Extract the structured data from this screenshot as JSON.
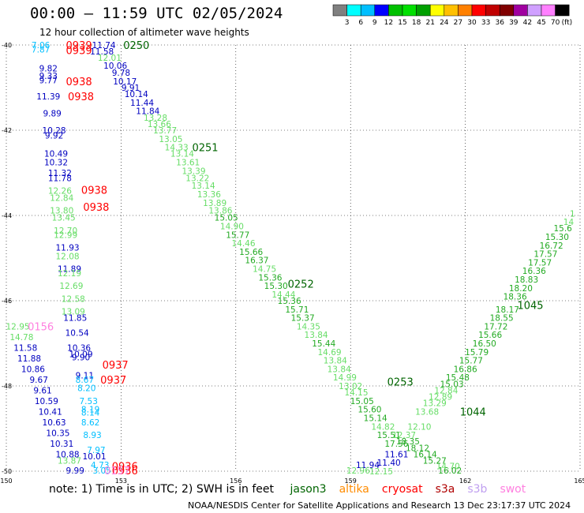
{
  "header": {
    "title": "00:00 – 11:59 UTC 02/05/2024",
    "subtitle": "12 hour collection of altimeter wave heights"
  },
  "legend": {
    "labels": [
      "3",
      "6",
      "9",
      "12",
      "15",
      "18",
      "21",
      "24",
      "27",
      "30",
      "33",
      "36",
      "39",
      "42",
      "45",
      "70"
    ],
    "unit": "(ft)",
    "colors": [
      "#808080",
      "#00ffff",
      "#00bfff",
      "#0000ff",
      "#00c000",
      "#00e000",
      "#00a000",
      "#ffff00",
      "#ffc000",
      "#ff8000",
      "#ff0000",
      "#c00000",
      "#800000",
      "#a000a0",
      "#d0a0ff",
      "#ff80ff",
      "#000000"
    ]
  },
  "note": {
    "prefix": "note:  1) Time is in UTC; 2) SWH is in feet",
    "satellites": [
      {
        "name": "jason3",
        "color": "#006400"
      },
      {
        "name": "altika",
        "color": "#ff8c00"
      },
      {
        "name": "cryosat",
        "color": "#ff0000"
      },
      {
        "name": "s3a",
        "color": "#b00000"
      },
      {
        "name": "s3b",
        "color": "#c0a0f0"
      },
      {
        "name": "swot",
        "color": "#ff80e0"
      }
    ]
  },
  "credit": "NOAA/NESDIS Center for Satellite Applications and Research    13 Dec 23:17:37 UTC 2024",
  "chart_data": {
    "type": "scatter",
    "xlim": [
      150,
      165
    ],
    "ylim": [
      -50,
      -40
    ],
    "xticks": [
      "150",
      "153",
      "156",
      "159",
      "162",
      "165"
    ],
    "yticks": [
      "-40",
      "-42",
      "-44",
      "-46",
      "-48",
      "-50"
    ],
    "grid": true,
    "time_labels": [
      {
        "x": 151.9,
        "y": -40.0,
        "text": "0939",
        "color": "#ff0000"
      },
      {
        "x": 151.9,
        "y": -40.12,
        "text": "0939",
        "color": "#ff0000"
      },
      {
        "x": 151.9,
        "y": -40.85,
        "text": "0938",
        "color": "#ff0000"
      },
      {
        "x": 151.95,
        "y": -41.2,
        "text": "0938",
        "color": "#ff0000"
      },
      {
        "x": 152.3,
        "y": -43.4,
        "text": "0938",
        "color": "#ff0000"
      },
      {
        "x": 152.35,
        "y": -43.8,
        "text": "0938",
        "color": "#ff0000"
      },
      {
        "x": 152.85,
        "y": -47.5,
        "text": "0937",
        "color": "#ff0000"
      },
      {
        "x": 152.8,
        "y": -47.85,
        "text": "0937",
        "color": "#ff0000"
      },
      {
        "x": 153.1,
        "y": -49.88,
        "text": "0936",
        "color": "#ff0000"
      },
      {
        "x": 153.1,
        "y": -49.98,
        "text": "0936",
        "color": "#ff0000"
      },
      {
        "x": 153.4,
        "y": -40.0,
        "text": "0250",
        "color": "#006400"
      },
      {
        "x": 155.2,
        "y": -42.4,
        "text": "0251",
        "color": "#006400"
      },
      {
        "x": 157.7,
        "y": -45.6,
        "text": "0252",
        "color": "#006400"
      },
      {
        "x": 160.3,
        "y": -47.9,
        "text": "0253",
        "color": "#006400"
      },
      {
        "x": 162.2,
        "y": -48.6,
        "text": "1044",
        "color": "#006400"
      },
      {
        "x": 163.7,
        "y": -46.1,
        "text": "1045",
        "color": "#006400"
      },
      {
        "x": 150.9,
        "y": -46.6,
        "text": "0156",
        "color": "#ff80e0"
      },
      {
        "x": 152.9,
        "y": -49.98,
        "text": "0157",
        "color": "#ff80e0"
      }
    ],
    "points": [
      {
        "x": 150.9,
        "y": -40.0,
        "v": "7.06",
        "color": "#00bfff"
      },
      {
        "x": 150.9,
        "y": -40.1,
        "v": "7.87",
        "color": "#00bfff"
      },
      {
        "x": 152.55,
        "y": -40.0,
        "v": "11.74",
        "color": "#0000c0"
      },
      {
        "x": 152.5,
        "y": -40.15,
        "v": "11.58",
        "color": "#0000c0"
      },
      {
        "x": 152.7,
        "y": -40.3,
        "v": "12.01",
        "color": "#66dd66"
      },
      {
        "x": 152.85,
        "y": -40.48,
        "v": "10.06",
        "color": "#0000c0"
      },
      {
        "x": 153.0,
        "y": -40.65,
        "v": "9.78",
        "color": "#0000c0"
      },
      {
        "x": 153.1,
        "y": -40.85,
        "v": "10.17",
        "color": "#0000c0"
      },
      {
        "x": 153.25,
        "y": -41.0,
        "v": "9.91",
        "color": "#0000c0"
      },
      {
        "x": 153.4,
        "y": -41.15,
        "v": "10.14",
        "color": "#0000c0"
      },
      {
        "x": 153.55,
        "y": -41.35,
        "v": "11.44",
        "color": "#0000c0"
      },
      {
        "x": 153.7,
        "y": -41.55,
        "v": "11.84",
        "color": "#0000c0"
      },
      {
        "x": 153.9,
        "y": -41.7,
        "v": "13.28",
        "color": "#66dd66"
      },
      {
        "x": 154.0,
        "y": -41.85,
        "v": "13.66",
        "color": "#66dd66"
      },
      {
        "x": 154.15,
        "y": -42.0,
        "v": "13.77",
        "color": "#66dd66"
      },
      {
        "x": 154.3,
        "y": -42.2,
        "v": "13.05",
        "color": "#66dd66"
      },
      {
        "x": 154.45,
        "y": -42.4,
        "v": "14.33",
        "color": "#66dd66"
      },
      {
        "x": 154.6,
        "y": -42.55,
        "v": "13.14",
        "color": "#66dd66"
      },
      {
        "x": 154.75,
        "y": -42.75,
        "v": "13.61",
        "color": "#66dd66"
      },
      {
        "x": 154.9,
        "y": -42.95,
        "v": "13.39",
        "color": "#66dd66"
      },
      {
        "x": 155.0,
        "y": -43.12,
        "v": "13.22",
        "color": "#66dd66"
      },
      {
        "x": 155.15,
        "y": -43.3,
        "v": "13.14",
        "color": "#66dd66"
      },
      {
        "x": 155.3,
        "y": -43.5,
        "v": "13.36",
        "color": "#66dd66"
      },
      {
        "x": 155.45,
        "y": -43.7,
        "v": "13.89",
        "color": "#66dd66"
      },
      {
        "x": 155.6,
        "y": -43.88,
        "v": "13.86",
        "color": "#66dd66"
      },
      {
        "x": 155.75,
        "y": -44.05,
        "v": "15.05",
        "color": "#22aa22"
      },
      {
        "x": 155.9,
        "y": -44.25,
        "v": "14.90",
        "color": "#66dd66"
      },
      {
        "x": 156.05,
        "y": -44.45,
        "v": "15.77",
        "color": "#22aa22"
      },
      {
        "x": 156.2,
        "y": -44.65,
        "v": "14.46",
        "color": "#66dd66"
      },
      {
        "x": 156.4,
        "y": -44.85,
        "v": "15.66",
        "color": "#22aa22"
      },
      {
        "x": 156.55,
        "y": -45.05,
        "v": "16.37",
        "color": "#22aa22"
      },
      {
        "x": 156.75,
        "y": -45.25,
        "v": "14.75",
        "color": "#66dd66"
      },
      {
        "x": 156.9,
        "y": -45.45,
        "v": "15.36",
        "color": "#22aa22"
      },
      {
        "x": 157.05,
        "y": -45.65,
        "v": "15.30",
        "color": "#22aa22"
      },
      {
        "x": 157.25,
        "y": -45.85,
        "v": "14.44",
        "color": "#66dd66"
      },
      {
        "x": 157.4,
        "y": -46.0,
        "v": "15.36",
        "color": "#22aa22"
      },
      {
        "x": 157.6,
        "y": -46.2,
        "v": "15.71",
        "color": "#22aa22"
      },
      {
        "x": 157.75,
        "y": -46.4,
        "v": "15.37",
        "color": "#22aa22"
      },
      {
        "x": 157.9,
        "y": -46.6,
        "v": "14.35",
        "color": "#66dd66"
      },
      {
        "x": 158.1,
        "y": -46.8,
        "v": "13.84",
        "color": "#66dd66"
      },
      {
        "x": 158.3,
        "y": -47.0,
        "v": "15.44",
        "color": "#22aa22"
      },
      {
        "x": 158.45,
        "y": -47.2,
        "v": "14.69",
        "color": "#66dd66"
      },
      {
        "x": 158.6,
        "y": -47.4,
        "v": "13.84",
        "color": "#66dd66"
      },
      {
        "x": 158.7,
        "y": -47.6,
        "v": "13.84",
        "color": "#66dd66"
      },
      {
        "x": 158.85,
        "y": -47.8,
        "v": "14.99",
        "color": "#66dd66"
      },
      {
        "x": 159.0,
        "y": -48.0,
        "v": "13.02",
        "color": "#66dd66"
      },
      {
        "x": 159.15,
        "y": -48.15,
        "v": "14.15",
        "color": "#66dd66"
      },
      {
        "x": 159.3,
        "y": -48.35,
        "v": "15.05",
        "color": "#22aa22"
      },
      {
        "x": 159.5,
        "y": -48.55,
        "v": "15.60",
        "color": "#22aa22"
      },
      {
        "x": 159.65,
        "y": -48.75,
        "v": "15.14",
        "color": "#22aa22"
      },
      {
        "x": 159.85,
        "y": -48.95,
        "v": "14.82",
        "color": "#66dd66"
      },
      {
        "x": 160.0,
        "y": -49.15,
        "v": "15.51",
        "color": "#22aa22"
      },
      {
        "x": 160.2,
        "y": -49.35,
        "v": "17.56",
        "color": "#22aa22"
      },
      {
        "x": 160.2,
        "y": -49.6,
        "v": "11.61",
        "color": "#0000c0"
      },
      {
        "x": 160.0,
        "y": -49.8,
        "v": "11.40",
        "color": "#0000c0"
      },
      {
        "x": 159.8,
        "y": -50.0,
        "v": "12.15",
        "color": "#66dd66"
      },
      {
        "x": 159.45,
        "y": -49.85,
        "v": "11.94",
        "color": "#0000c0"
      },
      {
        "x": 159.2,
        "y": -49.98,
        "v": "12.96",
        "color": "#66dd66"
      },
      {
        "x": 161.6,
        "y": -49.98,
        "v": "16.02",
        "color": "#22aa22"
      },
      {
        "x": 161.55,
        "y": -49.88,
        "v": "14.70",
        "color": "#66dd66"
      },
      {
        "x": 161.2,
        "y": -49.75,
        "v": "15.27",
        "color": "#22aa22"
      },
      {
        "x": 160.95,
        "y": -49.6,
        "v": "16.14",
        "color": "#22aa22"
      },
      {
        "x": 160.75,
        "y": -49.45,
        "v": "18.12",
        "color": "#22aa22"
      },
      {
        "x": 160.5,
        "y": -49.3,
        "v": "18.35",
        "color": "#22aa22"
      },
      {
        "x": 160.4,
        "y": -49.15,
        "v": "12.37",
        "color": "#66dd66"
      },
      {
        "x": 160.8,
        "y": -48.95,
        "v": "12.10",
        "color": "#66dd66"
      },
      {
        "x": 161.0,
        "y": -48.6,
        "v": "13.68",
        "color": "#66dd66"
      },
      {
        "x": 161.2,
        "y": -48.4,
        "v": "13.29",
        "color": "#66dd66"
      },
      {
        "x": 161.35,
        "y": -48.25,
        "v": "12.89",
        "color": "#66dd66"
      },
      {
        "x": 161.5,
        "y": -48.1,
        "v": "12.84",
        "color": "#66dd66"
      },
      {
        "x": 161.65,
        "y": -47.95,
        "v": "15.03",
        "color": "#22aa22"
      },
      {
        "x": 161.8,
        "y": -47.8,
        "v": "15.48",
        "color": "#22aa22"
      },
      {
        "x": 162.0,
        "y": -47.6,
        "v": "16.86",
        "color": "#22aa22"
      },
      {
        "x": 162.15,
        "y": -47.4,
        "v": "15.77",
        "color": "#22aa22"
      },
      {
        "x": 162.3,
        "y": -47.2,
        "v": "15.79",
        "color": "#22aa22"
      },
      {
        "x": 162.5,
        "y": -47.0,
        "v": "16.50",
        "color": "#22aa22"
      },
      {
        "x": 162.65,
        "y": -46.8,
        "v": "15.66",
        "color": "#22aa22"
      },
      {
        "x": 162.8,
        "y": -46.6,
        "v": "17.72",
        "color": "#22aa22"
      },
      {
        "x": 162.95,
        "y": -46.4,
        "v": "18.55",
        "color": "#22aa22"
      },
      {
        "x": 163.1,
        "y": -46.2,
        "v": "18.17",
        "color": "#22aa22"
      },
      {
        "x": 163.3,
        "y": -45.9,
        "v": "18.36",
        "color": "#22aa22"
      },
      {
        "x": 163.45,
        "y": -45.7,
        "v": "18.20",
        "color": "#22aa22"
      },
      {
        "x": 163.6,
        "y": -45.5,
        "v": "18.83",
        "color": "#22aa22"
      },
      {
        "x": 163.8,
        "y": -45.3,
        "v": "16.36",
        "color": "#22aa22"
      },
      {
        "x": 163.95,
        "y": -45.1,
        "v": "17.57",
        "color": "#22aa22"
      },
      {
        "x": 164.1,
        "y": -44.9,
        "v": "17.57",
        "color": "#22aa22"
      },
      {
        "x": 164.25,
        "y": -44.7,
        "v": "16.72",
        "color": "#22aa22"
      },
      {
        "x": 164.4,
        "y": -44.5,
        "v": "15.30",
        "color": "#22aa22"
      },
      {
        "x": 164.55,
        "y": -44.3,
        "v": "15.6",
        "color": "#22aa22"
      },
      {
        "x": 164.7,
        "y": -44.15,
        "v": "14",
        "color": "#66dd66"
      },
      {
        "x": 164.8,
        "y": -43.95,
        "v": "1",
        "color": "#66dd66"
      },
      {
        "x": 151.1,
        "y": -40.55,
        "v": "9.82",
        "color": "#0000c0"
      },
      {
        "x": 151.1,
        "y": -40.72,
        "v": "9.33",
        "color": "#0000c0"
      },
      {
        "x": 151.1,
        "y": -40.82,
        "v": "9.77",
        "color": "#0000c0"
      },
      {
        "x": 151.1,
        "y": -41.2,
        "v": "11.39",
        "color": "#0000c0"
      },
      {
        "x": 151.2,
        "y": -41.6,
        "v": "9.89",
        "color": "#0000c0"
      },
      {
        "x": 151.25,
        "y": -42.0,
        "v": "10.28",
        "color": "#0000c0"
      },
      {
        "x": 151.25,
        "y": -42.12,
        "v": "9.92",
        "color": "#0000c0"
      },
      {
        "x": 151.3,
        "y": -42.55,
        "v": "10.49",
        "color": "#0000c0"
      },
      {
        "x": 151.3,
        "y": -42.75,
        "v": "10.32",
        "color": "#0000c0"
      },
      {
        "x": 151.4,
        "y": -43.0,
        "v": "11.32",
        "color": "#0000c0"
      },
      {
        "x": 151.4,
        "y": -43.12,
        "v": "11.78",
        "color": "#0000c0"
      },
      {
        "x": 151.4,
        "y": -43.42,
        "v": "12.26",
        "color": "#66dd66"
      },
      {
        "x": 151.45,
        "y": -43.58,
        "v": "12.84",
        "color": "#66dd66"
      },
      {
        "x": 151.45,
        "y": -43.88,
        "v": "13.80",
        "color": "#66dd66"
      },
      {
        "x": 151.5,
        "y": -44.05,
        "v": "13.45",
        "color": "#66dd66"
      },
      {
        "x": 151.55,
        "y": -44.35,
        "v": "12.70",
        "color": "#66dd66"
      },
      {
        "x": 151.55,
        "y": -44.45,
        "v": "12.99",
        "color": "#66dd66"
      },
      {
        "x": 151.6,
        "y": -44.75,
        "v": "11.93",
        "color": "#0000c0"
      },
      {
        "x": 151.6,
        "y": -44.95,
        "v": "12.08",
        "color": "#66dd66"
      },
      {
        "x": 151.65,
        "y": -45.25,
        "v": "11.89",
        "color": "#0000c0"
      },
      {
        "x": 151.65,
        "y": -45.35,
        "v": "12.19",
        "color": "#66dd66"
      },
      {
        "x": 151.7,
        "y": -45.65,
        "v": "12.69",
        "color": "#66dd66"
      },
      {
        "x": 151.75,
        "y": -45.95,
        "v": "12.58",
        "color": "#66dd66"
      },
      {
        "x": 151.75,
        "y": -46.25,
        "v": "13.09",
        "color": "#66dd66"
      },
      {
        "x": 151.8,
        "y": -46.4,
        "v": "11.85",
        "color": "#0000c0"
      },
      {
        "x": 151.85,
        "y": -46.75,
        "v": "10.54",
        "color": "#0000c0"
      },
      {
        "x": 151.9,
        "y": -47.1,
        "v": "10.36",
        "color": "#0000c0"
      },
      {
        "x": 151.95,
        "y": -47.25,
        "v": "10.09",
        "color": "#0000c0"
      },
      {
        "x": 151.95,
        "y": -47.32,
        "v": "9.90",
        "color": "#0000c0"
      },
      {
        "x": 152.05,
        "y": -47.75,
        "v": "9.11",
        "color": "#0000c0"
      },
      {
        "x": 152.05,
        "y": -47.85,
        "v": "8.67",
        "color": "#00bfff"
      },
      {
        "x": 152.1,
        "y": -48.05,
        "v": "8.20",
        "color": "#00bfff"
      },
      {
        "x": 152.15,
        "y": -48.35,
        "v": "7.53",
        "color": "#00bfff"
      },
      {
        "x": 152.2,
        "y": -48.55,
        "v": "8.19",
        "color": "#00bfff"
      },
      {
        "x": 152.2,
        "y": -48.62,
        "v": "8.14",
        "color": "#00bfff"
      },
      {
        "x": 152.2,
        "y": -48.85,
        "v": "8.62",
        "color": "#00bfff"
      },
      {
        "x": 152.25,
        "y": -49.15,
        "v": "8.93",
        "color": "#00bfff"
      },
      {
        "x": 152.35,
        "y": -49.5,
        "v": "7.97",
        "color": "#00bfff"
      },
      {
        "x": 152.3,
        "y": -49.65,
        "v": "10.01",
        "color": "#0000c0"
      },
      {
        "x": 152.45,
        "y": -49.85,
        "v": "4.73",
        "color": "#00bfff"
      },
      {
        "x": 152.5,
        "y": -49.98,
        "v": "3.05",
        "color": "#00bfff"
      },
      {
        "x": 150.3,
        "y": -46.6,
        "v": "12.95",
        "color": "#66dd66"
      },
      {
        "x": 150.4,
        "y": -46.85,
        "v": "14.78",
        "color": "#66dd66"
      },
      {
        "x": 150.5,
        "y": -47.1,
        "v": "11.58",
        "color": "#0000c0"
      },
      {
        "x": 150.6,
        "y": -47.35,
        "v": "11.88",
        "color": "#0000c0"
      },
      {
        "x": 150.7,
        "y": -47.6,
        "v": "10.86",
        "color": "#0000c0"
      },
      {
        "x": 150.85,
        "y": -47.85,
        "v": "9.67",
        "color": "#0000c0"
      },
      {
        "x": 150.95,
        "y": -48.1,
        "v": "9.61",
        "color": "#0000c0"
      },
      {
        "x": 151.05,
        "y": -48.35,
        "v": "10.59",
        "color": "#0000c0"
      },
      {
        "x": 151.15,
        "y": -48.6,
        "v": "10.41",
        "color": "#0000c0"
      },
      {
        "x": 151.25,
        "y": -48.85,
        "v": "10.63",
        "color": "#0000c0"
      },
      {
        "x": 151.35,
        "y": -49.1,
        "v": "10.35",
        "color": "#0000c0"
      },
      {
        "x": 151.45,
        "y": -49.35,
        "v": "10.31",
        "color": "#0000c0"
      },
      {
        "x": 151.6,
        "y": -49.6,
        "v": "10.88",
        "color": "#0000c0"
      },
      {
        "x": 151.65,
        "y": -49.75,
        "v": "13.87",
        "color": "#66dd66"
      },
      {
        "x": 151.8,
        "y": -49.98,
        "v": "9.99",
        "color": "#0000c0"
      }
    ]
  }
}
